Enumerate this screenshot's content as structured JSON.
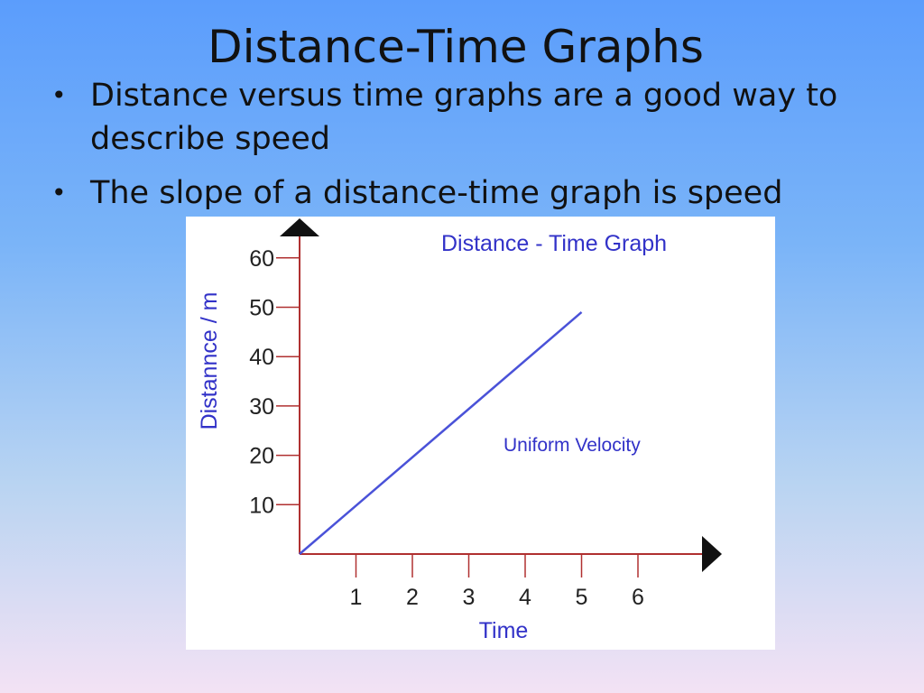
{
  "slide": {
    "title": "Distance-Time Graphs",
    "bullets": [
      "Distance versus time graphs are a good way to describe speed",
      "The slope of a distance-time graph is speed"
    ]
  },
  "chart_data": {
    "type": "line",
    "title": "Distance - Time Graph",
    "annotation": "Uniform Velocity",
    "xlabel": "Time",
    "ylabel": "Distannce / m",
    "x_ticks": [
      1,
      2,
      3,
      4,
      5,
      6
    ],
    "y_ticks": [
      10,
      20,
      30,
      40,
      50,
      60
    ],
    "xlim": [
      0,
      7
    ],
    "ylim": [
      0,
      60
    ],
    "series": [
      {
        "x": [
          0,
          5
        ],
        "y": [
          0,
          49
        ]
      }
    ],
    "grid": false,
    "colors": {
      "line": "#4a52d8",
      "axis": "#b03030",
      "text": "#3232c8",
      "tick_text": "#222222"
    }
  }
}
